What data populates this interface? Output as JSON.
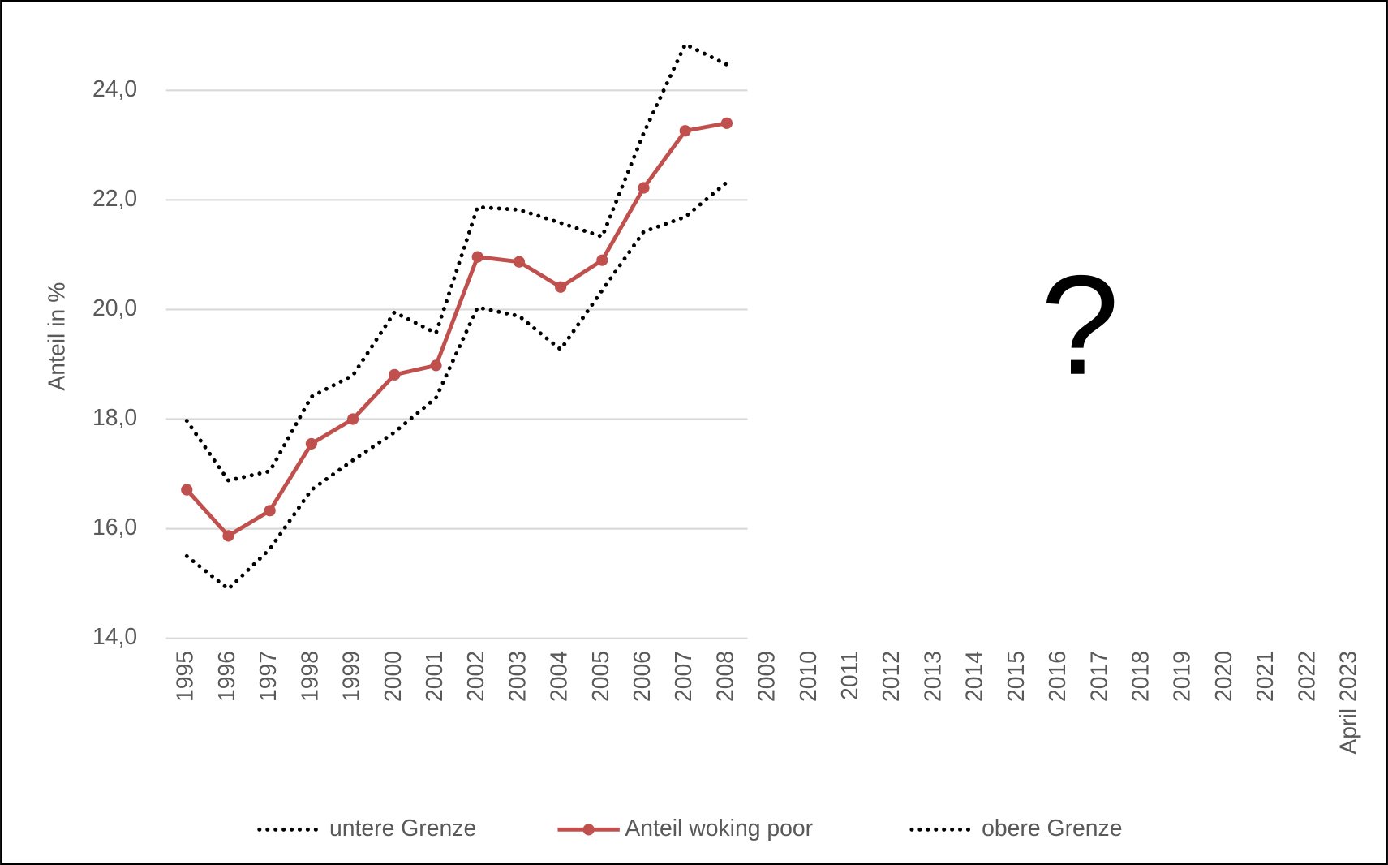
{
  "chart_data": {
    "type": "line",
    "ylabel": "Anteil in %",
    "annotation": "?",
    "categories": [
      "1995",
      "1996",
      "1997",
      "1998",
      "1999",
      "2000",
      "2001",
      "2002",
      "2003",
      "2004",
      "2005",
      "2006",
      "2007",
      "2008",
      "2009",
      "2010",
      "2011",
      "2012",
      "2013",
      "2014",
      "2015",
      "2016",
      "2017",
      "2018",
      "2019",
      "2020",
      "2021",
      "2022",
      "April 2023"
    ],
    "series": [
      {
        "name": "untere Grenze",
        "color": "#000000",
        "style": "dotted",
        "values": [
          15.5,
          14.9,
          15.63,
          16.71,
          17.25,
          17.76,
          18.39,
          20.04,
          19.88,
          19.27,
          20.35,
          21.42,
          21.69,
          22.32,
          null,
          null,
          null,
          null,
          null,
          null,
          null,
          null,
          null,
          null,
          null,
          null,
          null,
          null,
          null
        ]
      },
      {
        "name": "Anteil woking poor",
        "color": "#c0504d",
        "style": "solid-marker",
        "values": [
          16.71,
          15.87,
          16.33,
          17.55,
          18.0,
          18.81,
          18.98,
          20.96,
          20.87,
          20.41,
          20.9,
          22.22,
          23.26,
          23.4,
          null,
          null,
          null,
          null,
          null,
          null,
          null,
          null,
          null,
          null,
          null,
          null,
          null,
          null,
          null
        ]
      },
      {
        "name": "obere Grenze",
        "color": "#000000",
        "style": "dotted",
        "values": [
          17.97,
          16.88,
          17.05,
          18.41,
          18.8,
          19.95,
          19.57,
          21.87,
          21.82,
          21.58,
          21.33,
          23.22,
          24.84,
          24.47,
          null,
          null,
          null,
          null,
          null,
          null,
          null,
          null,
          null,
          null,
          null,
          null,
          null,
          null,
          null
        ]
      }
    ],
    "ylim": [
      14,
      25
    ],
    "yticks": [
      {
        "value": 14,
        "label": "14,0"
      },
      {
        "value": 16,
        "label": "16,0"
      },
      {
        "value": 18,
        "label": "18,0"
      },
      {
        "value": 20,
        "label": "20,0"
      },
      {
        "value": 22,
        "label": "22,0"
      },
      {
        "value": 24,
        "label": "24,0"
      }
    ],
    "grid": true,
    "legend": "bottom"
  }
}
